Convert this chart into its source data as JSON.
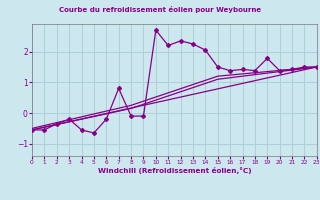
{
  "title": "Courbe du refroidissement éolien pour Weybourne",
  "xlabel": "Windchill (Refroidissement éolien,°C)",
  "bg_color": "#cce8ee",
  "grid_color": "#aad0d8",
  "line_color": "#880088",
  "xlim": [
    0,
    23
  ],
  "ylim": [
    -1.4,
    2.9
  ],
  "xticks": [
    0,
    1,
    2,
    3,
    4,
    5,
    6,
    7,
    8,
    9,
    10,
    11,
    12,
    13,
    14,
    15,
    16,
    17,
    18,
    19,
    20,
    21,
    22,
    23
  ],
  "yticks": [
    -1,
    0,
    1,
    2
  ],
  "series1_x": [
    0,
    1,
    2,
    3,
    4,
    5,
    6,
    7,
    8,
    9,
    10,
    11,
    12,
    13,
    14,
    15,
    16,
    17,
    18,
    19,
    20,
    21,
    22,
    23
  ],
  "series1_y": [
    -0.55,
    -0.55,
    -0.35,
    -0.2,
    -0.55,
    -0.65,
    -0.2,
    0.8,
    -0.1,
    -0.1,
    2.7,
    2.2,
    2.35,
    2.25,
    2.05,
    1.5,
    1.38,
    1.42,
    1.38,
    1.78,
    1.38,
    1.42,
    1.5,
    1.5
  ],
  "trend1_x": [
    0,
    23
  ],
  "trend1_y": [
    -0.55,
    1.5
  ],
  "trend2_x": [
    0,
    8,
    15,
    23
  ],
  "trend2_y": [
    -0.55,
    0.15,
    1.1,
    1.5
  ],
  "trend3_x": [
    0,
    8,
    15,
    23
  ],
  "trend3_y": [
    -0.5,
    0.25,
    1.2,
    1.5
  ]
}
